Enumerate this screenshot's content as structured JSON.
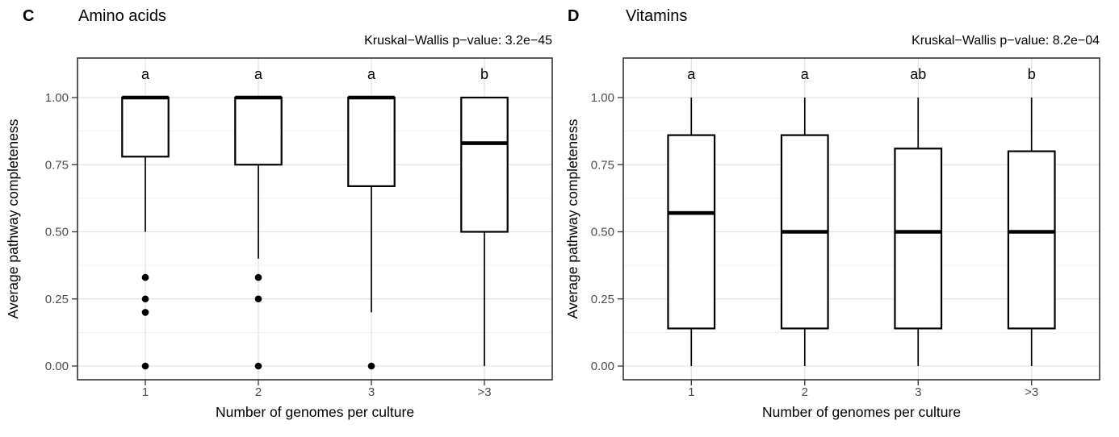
{
  "colors": {
    "background": "#ffffff",
    "panel_border": "#333333",
    "grid_major": "#e3e3e3",
    "grid_minor": "#f1f1f1",
    "box_stroke": "#000000",
    "box_fill": "#ffffff",
    "outlier": "#000000",
    "tick_label": "#4d4d4d",
    "axis_title": "#000000",
    "letter_color": "#000000"
  },
  "chart_data": [
    {
      "type": "boxplot",
      "panel_label": "C",
      "title": "Amino acids",
      "annotation": "Kruskal−Wallis p−value: 3.2e−45",
      "xlabel": "Number of genomes per culture",
      "ylabel": "Average pathway completeness",
      "categories": [
        "1",
        "2",
        "3",
        ">3"
      ],
      "ylim": [
        0,
        1
      ],
      "yticks": [
        "0.00",
        "0.25",
        "0.50",
        "0.75",
        "1.00"
      ],
      "grid": "on",
      "legend": "none",
      "boxes": [
        {
          "category": "1",
          "letter": "a",
          "whisker_low": 0.5,
          "q1": 0.78,
          "median": 1.0,
          "q3": 1.0,
          "whisker_high": 1.0,
          "outliers": [
            0.33,
            0.25,
            0.2,
            0.0
          ]
        },
        {
          "category": "2",
          "letter": "a",
          "whisker_low": 0.4,
          "q1": 0.75,
          "median": 1.0,
          "q3": 1.0,
          "whisker_high": 1.0,
          "outliers": [
            0.33,
            0.25,
            0.0
          ]
        },
        {
          "category": "3",
          "letter": "a",
          "whisker_low": 0.2,
          "q1": 0.67,
          "median": 1.0,
          "q3": 1.0,
          "whisker_high": 1.0,
          "outliers": [
            0.0
          ]
        },
        {
          "category": ">3",
          "letter": "b",
          "whisker_low": 0.0,
          "q1": 0.5,
          "median": 0.83,
          "q3": 1.0,
          "whisker_high": 1.0,
          "outliers": []
        }
      ]
    },
    {
      "type": "boxplot",
      "panel_label": "D",
      "title": "Vitamins",
      "annotation": "Kruskal−Wallis p−value: 8.2e−04",
      "xlabel": "Number of genomes per culture",
      "ylabel": "Average pathway completeness",
      "categories": [
        "1",
        "2",
        "3",
        ">3"
      ],
      "ylim": [
        0,
        1
      ],
      "yticks": [
        "0.00",
        "0.25",
        "0.50",
        "0.75",
        "1.00"
      ],
      "grid": "on",
      "legend": "none",
      "boxes": [
        {
          "category": "1",
          "letter": "a",
          "whisker_low": 0.0,
          "q1": 0.14,
          "median": 0.57,
          "q3": 0.86,
          "whisker_high": 1.0,
          "outliers": []
        },
        {
          "category": "2",
          "letter": "a",
          "whisker_low": 0.0,
          "q1": 0.14,
          "median": 0.5,
          "q3": 0.86,
          "whisker_high": 1.0,
          "outliers": []
        },
        {
          "category": "3",
          "letter": "ab",
          "whisker_low": 0.0,
          "q1": 0.14,
          "median": 0.5,
          "q3": 0.81,
          "whisker_high": 1.0,
          "outliers": []
        },
        {
          "category": ">3",
          "letter": "b",
          "whisker_low": 0.0,
          "q1": 0.14,
          "median": 0.5,
          "q3": 0.8,
          "whisker_high": 1.0,
          "outliers": []
        }
      ]
    }
  ]
}
